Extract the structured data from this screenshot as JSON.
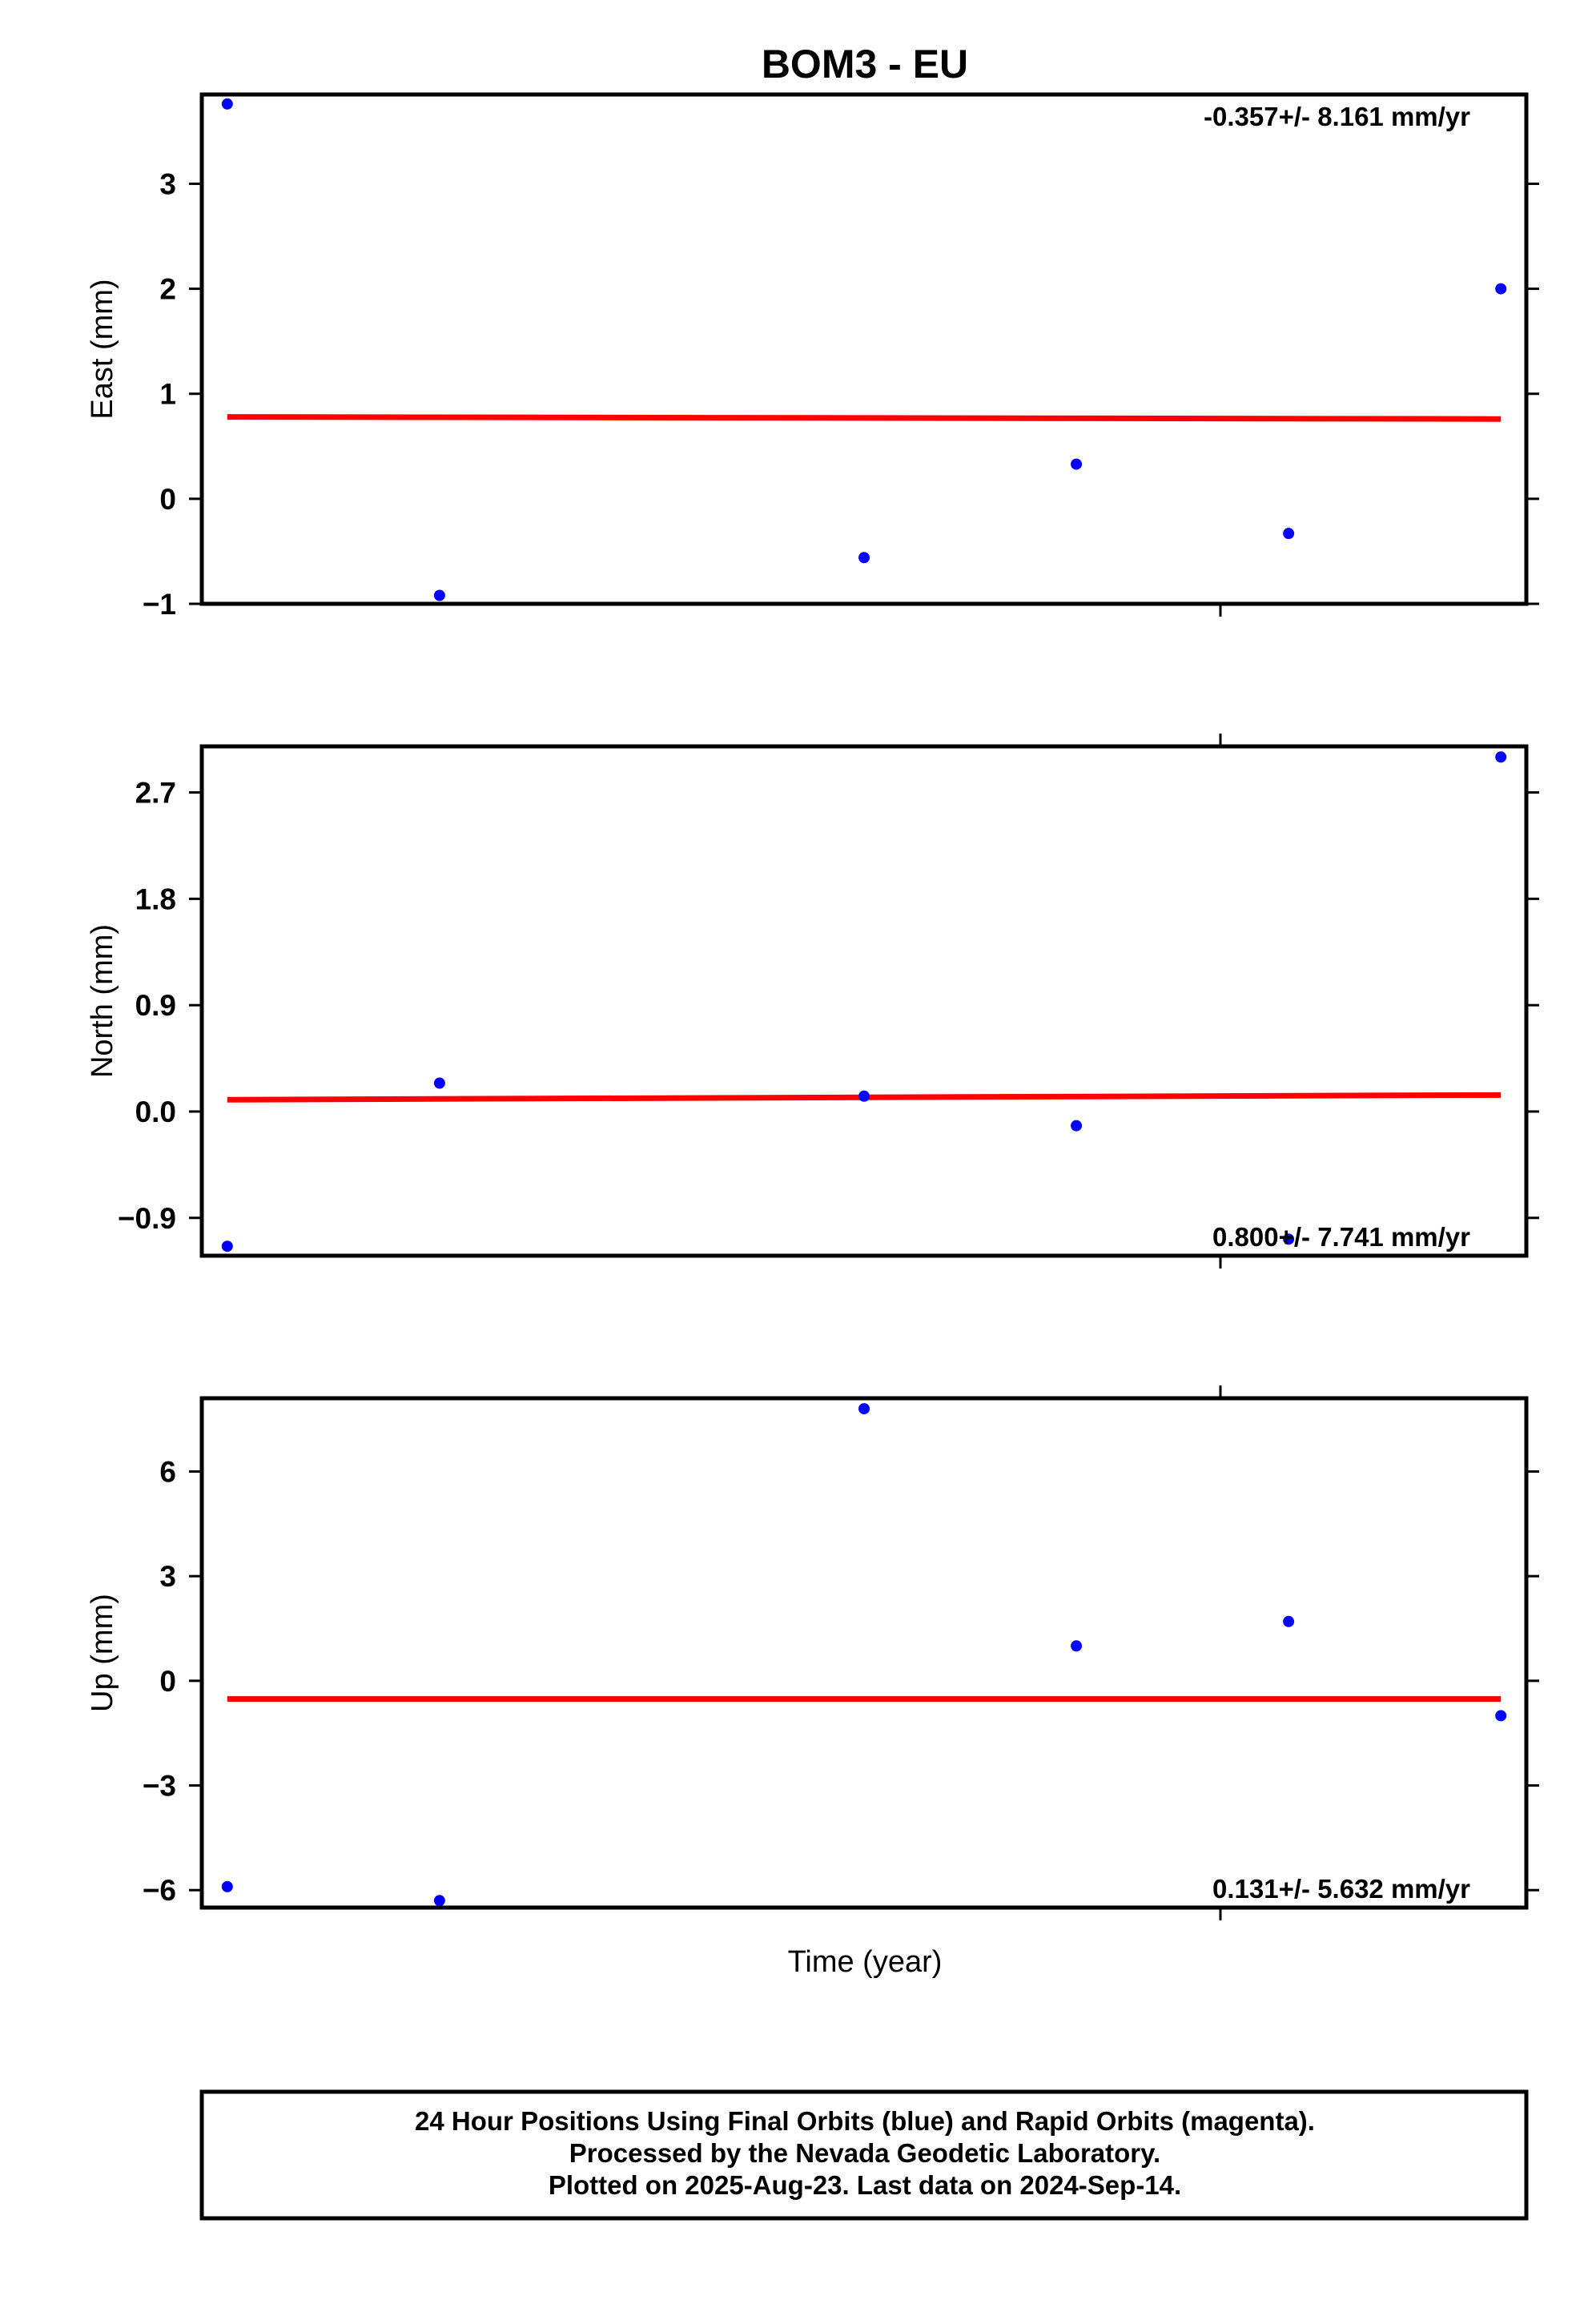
{
  "title": "BOM3 - EU",
  "xlabel": "Time (year)",
  "footer": {
    "line1": "24 Hour Positions Using Final Orbits (blue) and Rapid Orbits (magenta).",
    "line2": "Processed by the Nevada Geodetic Laboratory.",
    "line3": "Plotted on 2025-Aug-23. Last data on 2024-Sep-14."
  },
  "colors": {
    "points": "#0000ff",
    "trend": "#ff0000",
    "frame": "#000000"
  },
  "chart_data": [
    {
      "type": "scatter",
      "ylabel": "East (mm)",
      "rate_label": "-0.357+/- 8.161 mm/yr",
      "yticks": [
        -1,
        0,
        1,
        2,
        3
      ],
      "ytick_labels": [
        "−1",
        "0",
        "1",
        "2",
        "3"
      ],
      "ylim": [
        -1,
        3.85
      ],
      "x": [
        0,
        1,
        3,
        4,
        5,
        6
      ],
      "xlim": [
        -0.12,
        6.12
      ],
      "y": [
        3.76,
        -0.92,
        -0.56,
        0.33,
        -0.33,
        2.0
      ],
      "trend": {
        "x": [
          0,
          6
        ],
        "y": [
          0.78,
          0.76
        ]
      },
      "grid": false
    },
    {
      "type": "scatter",
      "ylabel": "North (mm)",
      "rate_label": "0.800+/- 7.741 mm/yr",
      "yticks": [
        -0.9,
        0.0,
        0.9,
        1.8,
        2.7
      ],
      "ytick_labels": [
        "−0.9",
        "0.0",
        "0.9",
        "1.8",
        "2.7"
      ],
      "ylim": [
        -1.22,
        3.09
      ],
      "x": [
        0,
        1,
        3,
        4,
        5,
        6
      ],
      "xlim": [
        -0.12,
        6.12
      ],
      "y": [
        -1.14,
        0.24,
        0.13,
        -0.12,
        -1.08,
        3.0
      ],
      "trend": {
        "x": [
          0,
          6
        ],
        "y": [
          0.1,
          0.14
        ]
      },
      "grid": false
    },
    {
      "type": "scatter",
      "ylabel": "Up (mm)",
      "rate_label": "0.131+/- 5.632 mm/yr",
      "yticks": [
        -6,
        -3,
        0,
        3,
        6
      ],
      "ytick_labels": [
        "−6",
        "−3",
        "0",
        "3",
        "6"
      ],
      "ylim": [
        -6.5,
        8.1
      ],
      "x": [
        0,
        1,
        3,
        4,
        5,
        6
      ],
      "xlim": [
        -0.12,
        6.12
      ],
      "y": [
        -5.9,
        -6.3,
        7.8,
        1.0,
        1.7,
        -1.0
      ],
      "trend": {
        "x": [
          0,
          6
        ],
        "y": [
          -0.52,
          -0.52
        ]
      },
      "grid": false
    }
  ]
}
